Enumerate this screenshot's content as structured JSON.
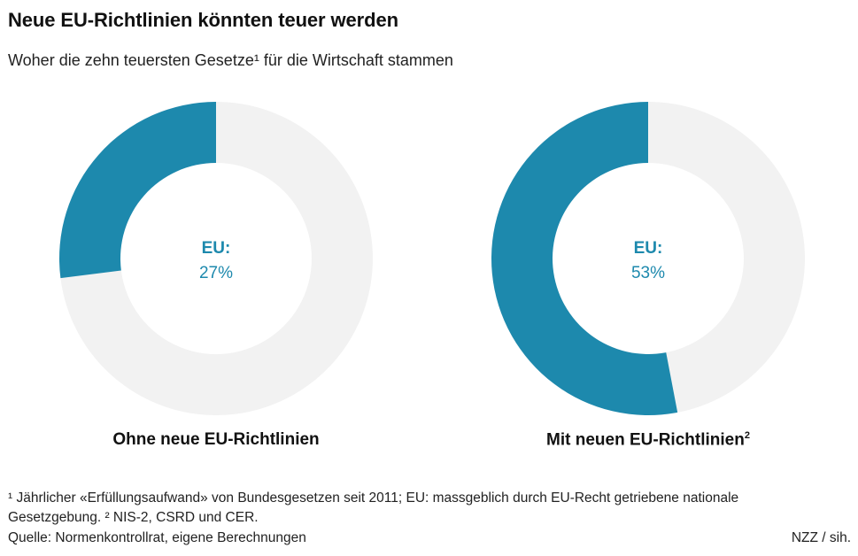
{
  "header": {
    "title": "Neue EU-Richtlinien könnten teuer werden",
    "subtitle": "Woher die zehn teuersten Gesetze¹ für die Wirtschaft stammen"
  },
  "colors": {
    "accent": "#1d89ad",
    "track": "#f2f2f2"
  },
  "chart_data": [
    {
      "type": "pie",
      "subtype": "donut",
      "title": "Ohne neue EU-Richtlinien",
      "title_suffix": "",
      "center_label": "EU:",
      "center_value": "27%",
      "series": [
        {
          "name": "EU",
          "value": 27
        },
        {
          "name": "Rest",
          "value": 73
        }
      ]
    },
    {
      "type": "pie",
      "subtype": "donut",
      "title": "Mit neuen EU-Richtlinien",
      "title_suffix": "2",
      "center_label": "EU:",
      "center_value": "53%",
      "series": [
        {
          "name": "EU",
          "value": 53
        },
        {
          "name": "Rest",
          "value": 47
        }
      ]
    }
  ],
  "footer": {
    "footnote": "¹ Jährlicher «Erfüllungsaufwand» von Bundesgesetzen seit 2011; EU: massgeblich durch EU-Recht getriebene nationale Gesetzgebung. ² NIS-2, CSRD und CER.",
    "source": "Quelle: Normenkontrollrat, eigene Berechnungen",
    "credit": "NZZ / sih."
  }
}
